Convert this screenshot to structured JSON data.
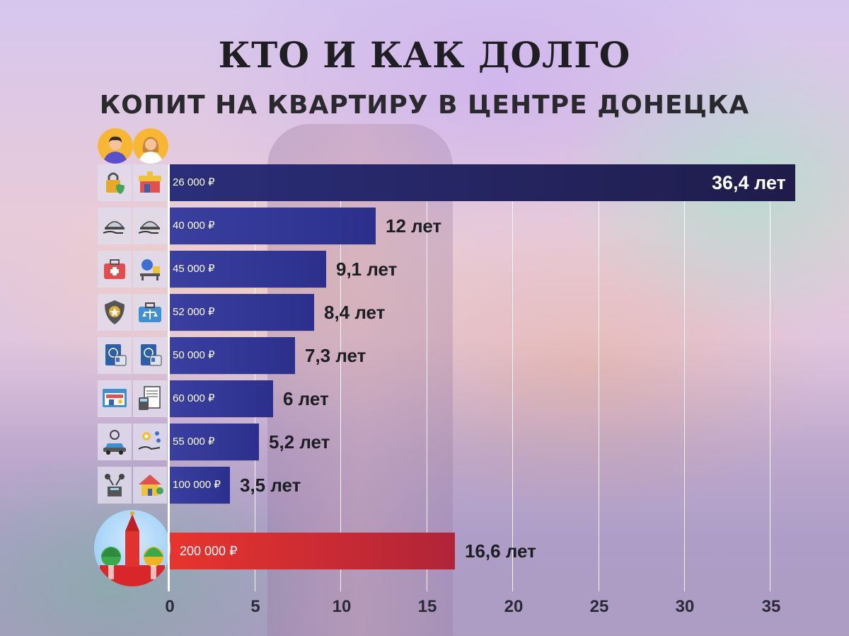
{
  "title": "КТО И КАК ДОЛГО",
  "subtitle": "КОПИТ НА КВАРТИРУ В ЦЕНТРЕ ДОНЕЦКА",
  "colors": {
    "bar": "#2e318f",
    "bar_top": "#211e4e",
    "bar_moscow": "#d9302f",
    "text": "#1f1f23"
  },
  "chart_data": {
    "type": "bar",
    "orientation": "horizontal",
    "title": "КТО И КАК ДОЛГО",
    "subtitle": "КОПИТ НА КВАРТИРУ В ЦЕНТРЕ ДОНЕЦКА",
    "xlim": [
      0,
      36.4
    ],
    "xticks": [
      "0",
      "5",
      "10",
      "15",
      "20",
      "25",
      "30",
      "35"
    ],
    "grid": true,
    "bars": [
      {
        "salary": "26 000 ₽",
        "value": 36.4,
        "label": "36,4 лет",
        "icons": [
          "lock-shield-icon",
          "shop-icon"
        ]
      },
      {
        "salary": "40 000 ₽",
        "value": 12,
        "label": "12 лет",
        "icons": [
          "cloche-hand-icon",
          "cloche-hand-icon"
        ]
      },
      {
        "salary": "45 000 ₽",
        "value": 9.1,
        "label": "9,1 лет",
        "icons": [
          "first-aid-kit-icon",
          "teacher-desk-icon"
        ]
      },
      {
        "salary": "52 000 ₽",
        "value": 8.4,
        "label": "8,4 лет",
        "icons": [
          "police-badge-icon",
          "lawyer-briefcase-icon"
        ]
      },
      {
        "salary": "50 000 ₽",
        "value": 7.3,
        "label": "7,3 лет",
        "icons": [
          "passport-icon",
          "passport-icon"
        ]
      },
      {
        "salary": "60 000 ₽",
        "value": 6,
        "label": "6 лет",
        "icons": [
          "web-shop-icon",
          "accountant-icon"
        ]
      },
      {
        "salary": "55 000 ₽",
        "value": 5.2,
        "label": "5,2 лет",
        "icons": [
          "car-service-icon",
          "gear-hand-icon"
        ]
      },
      {
        "salary": "100 000 ₽",
        "value": 3.5,
        "label": "3,5 лет",
        "icons": [
          "press-conference-icon",
          "house-icon"
        ]
      }
    ],
    "moscow": {
      "salary": "200 000 ₽",
      "value": 16.6,
      "label": "16,6 лет",
      "icon": "kremlin-icon"
    }
  }
}
